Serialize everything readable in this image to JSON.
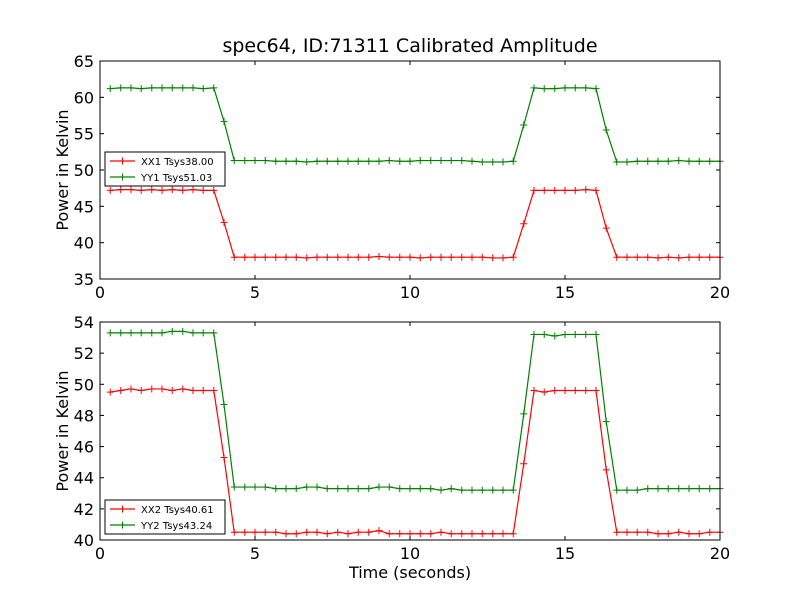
{
  "chart_data": {
    "type": "line",
    "title": "spec64, ID:71311 Calibrated Amplitude",
    "xlabel": "Time (seconds)",
    "panels": [
      {
        "id": "top",
        "ylabel": "Power in Kelvin",
        "xlim": [
          0,
          20
        ],
        "ylim": [
          35,
          65
        ],
        "xticks": [
          "0",
          "5",
          "10",
          "15",
          "20"
        ],
        "yticks": [
          "35",
          "40",
          "45",
          "50",
          "55",
          "60",
          "65"
        ],
        "legend_position": "center-left",
        "series": [
          {
            "name": "XX1 Tsys38.00",
            "color": "#ff0000",
            "x": [
              0.33,
              0.67,
              1.0,
              1.33,
              1.67,
              2.0,
              2.33,
              2.67,
              3.0,
              3.33,
              3.67,
              4.0,
              4.33,
              4.67,
              5.0,
              5.33,
              5.67,
              6.0,
              6.33,
              6.67,
              7.0,
              7.33,
              7.67,
              8.0,
              8.33,
              8.67,
              9.0,
              9.33,
              9.67,
              10.0,
              10.33,
              10.67,
              11.0,
              11.33,
              11.67,
              12.0,
              12.33,
              12.67,
              13.0,
              13.33,
              13.67,
              14.0,
              14.33,
              14.67,
              15.0,
              15.33,
              15.67,
              16.0,
              16.33,
              16.67,
              17.0,
              17.33,
              17.67,
              18.0,
              18.33,
              18.67,
              19.0,
              19.33,
              19.67,
              20.0
            ],
            "y": [
              47.2,
              47.3,
              47.3,
              47.2,
              47.3,
              47.2,
              47.3,
              47.2,
              47.3,
              47.2,
              47.2,
              42.8,
              38.0,
              38.0,
              38.0,
              38.0,
              38.0,
              38.0,
              38.0,
              37.9,
              38.0,
              38.0,
              38.0,
              38.0,
              38.0,
              38.0,
              38.1,
              38.0,
              38.0,
              38.0,
              37.9,
              38.0,
              38.0,
              38.0,
              38.0,
              38.0,
              38.0,
              37.9,
              37.9,
              38.0,
              42.6,
              47.2,
              47.2,
              47.2,
              47.2,
              47.2,
              47.3,
              47.2,
              42.0,
              38.0,
              38.0,
              38.0,
              38.0,
              37.9,
              38.0,
              37.9,
              38.0,
              38.0,
              38.0,
              38.0
            ]
          },
          {
            "name": "YY1 Tsys51.03",
            "color": "#008000",
            "x": [
              0.33,
              0.67,
              1.0,
              1.33,
              1.67,
              2.0,
              2.33,
              2.67,
              3.0,
              3.33,
              3.67,
              4.0,
              4.33,
              4.67,
              5.0,
              5.33,
              5.67,
              6.0,
              6.33,
              6.67,
              7.0,
              7.33,
              7.67,
              8.0,
              8.33,
              8.67,
              9.0,
              9.33,
              9.67,
              10.0,
              10.33,
              10.67,
              11.0,
              11.33,
              11.67,
              12.0,
              12.33,
              12.67,
              13.0,
              13.33,
              13.67,
              14.0,
              14.33,
              14.67,
              15.0,
              15.33,
              15.67,
              16.0,
              16.33,
              16.67,
              17.0,
              17.33,
              17.67,
              18.0,
              18.33,
              18.67,
              19.0,
              19.33,
              19.67,
              20.0
            ],
            "y": [
              61.2,
              61.3,
              61.3,
              61.2,
              61.3,
              61.3,
              61.3,
              61.3,
              61.3,
              61.2,
              61.3,
              56.7,
              51.3,
              51.3,
              51.3,
              51.3,
              51.2,
              51.2,
              51.2,
              51.1,
              51.2,
              51.2,
              51.2,
              51.2,
              51.2,
              51.2,
              51.2,
              51.3,
              51.2,
              51.2,
              51.3,
              51.3,
              51.3,
              51.3,
              51.3,
              51.2,
              51.1,
              51.1,
              51.1,
              51.2,
              56.2,
              61.3,
              61.2,
              61.2,
              61.3,
              61.3,
              61.3,
              61.2,
              55.5,
              51.1,
              51.1,
              51.2,
              51.2,
              51.2,
              51.2,
              51.3,
              51.2,
              51.2,
              51.2,
              51.2
            ]
          }
        ]
      },
      {
        "id": "bottom",
        "ylabel": "Power in Kelvin",
        "xlim": [
          0,
          20
        ],
        "ylim": [
          40,
          54
        ],
        "xticks": [
          "0",
          "5",
          "10",
          "15",
          "20"
        ],
        "yticks": [
          "40",
          "42",
          "44",
          "46",
          "48",
          "50",
          "52",
          "54"
        ],
        "legend_position": "lower-left",
        "series": [
          {
            "name": "XX2 Tsys40.61",
            "color": "#ff0000",
            "x": [
              0.33,
              0.67,
              1.0,
              1.33,
              1.67,
              2.0,
              2.33,
              2.67,
              3.0,
              3.33,
              3.67,
              4.0,
              4.33,
              4.67,
              5.0,
              5.33,
              5.67,
              6.0,
              6.33,
              6.67,
              7.0,
              7.33,
              7.67,
              8.0,
              8.33,
              8.67,
              9.0,
              9.33,
              9.67,
              10.0,
              10.33,
              10.67,
              11.0,
              11.33,
              11.67,
              12.0,
              12.33,
              12.67,
              13.0,
              13.33,
              13.67,
              14.0,
              14.33,
              14.67,
              15.0,
              15.33,
              15.67,
              16.0,
              16.33,
              16.67,
              17.0,
              17.33,
              17.67,
              18.0,
              18.33,
              18.67,
              19.0,
              19.33,
              19.67,
              20.0
            ],
            "y": [
              49.5,
              49.6,
              49.7,
              49.6,
              49.7,
              49.7,
              49.6,
              49.7,
              49.6,
              49.6,
              49.6,
              45.3,
              40.5,
              40.5,
              40.5,
              40.5,
              40.5,
              40.4,
              40.4,
              40.5,
              40.5,
              40.4,
              40.5,
              40.4,
              40.5,
              40.5,
              40.6,
              40.4,
              40.4,
              40.4,
              40.4,
              40.4,
              40.5,
              40.4,
              40.4,
              40.4,
              40.4,
              40.4,
              40.4,
              40.4,
              44.9,
              49.6,
              49.5,
              49.6,
              49.6,
              49.6,
              49.6,
              49.6,
              44.5,
              40.5,
              40.5,
              40.5,
              40.5,
              40.4,
              40.4,
              40.5,
              40.4,
              40.4,
              40.5,
              40.5
            ]
          },
          {
            "name": "YY2 Tsys43.24",
            "color": "#008000",
            "x": [
              0.33,
              0.67,
              1.0,
              1.33,
              1.67,
              2.0,
              2.33,
              2.67,
              3.0,
              3.33,
              3.67,
              4.0,
              4.33,
              4.67,
              5.0,
              5.33,
              5.67,
              6.0,
              6.33,
              6.67,
              7.0,
              7.33,
              7.67,
              8.0,
              8.33,
              8.67,
              9.0,
              9.33,
              9.67,
              10.0,
              10.33,
              10.67,
              11.0,
              11.33,
              11.67,
              12.0,
              12.33,
              12.67,
              13.0,
              13.33,
              13.67,
              14.0,
              14.33,
              14.67,
              15.0,
              15.33,
              15.67,
              16.0,
              16.33,
              16.67,
              17.0,
              17.33,
              17.67,
              18.0,
              18.33,
              18.67,
              19.0,
              19.33,
              19.67,
              20.0
            ],
            "y": [
              53.3,
              53.3,
              53.3,
              53.3,
              53.3,
              53.3,
              53.4,
              53.4,
              53.3,
              53.3,
              53.3,
              48.7,
              43.4,
              43.4,
              43.4,
              43.4,
              43.3,
              43.3,
              43.3,
              43.4,
              43.4,
              43.3,
              43.3,
              43.3,
              43.3,
              43.3,
              43.4,
              43.4,
              43.3,
              43.3,
              43.3,
              43.3,
              43.2,
              43.3,
              43.2,
              43.2,
              43.2,
              43.2,
              43.2,
              43.2,
              48.1,
              53.2,
              53.2,
              53.1,
              53.2,
              53.2,
              53.2,
              53.2,
              47.6,
              43.2,
              43.2,
              43.2,
              43.3,
              43.3,
              43.3,
              43.3,
              43.3,
              43.3,
              43.3,
              43.3
            ]
          }
        ]
      }
    ]
  }
}
